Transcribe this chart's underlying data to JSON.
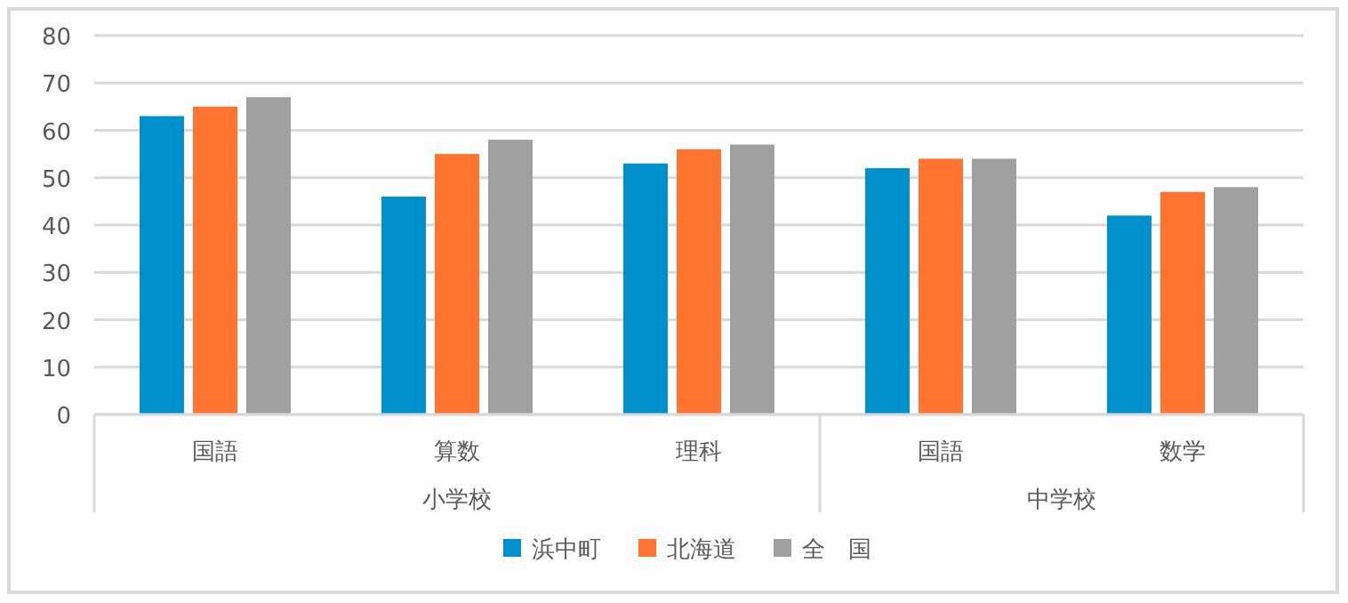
{
  "chart_data": {
    "type": "bar",
    "categories": [
      "国語",
      "算数",
      "理科",
      "国語",
      "数学"
    ],
    "annotations": [
      "小学校",
      "中学校"
    ],
    "series": [
      {
        "name": "浜中町",
        "color": "#0091cd",
        "values": [
          63,
          46,
          53,
          52,
          42
        ]
      },
      {
        "name": "北海道",
        "color": "#fe7430",
        "values": [
          65,
          55,
          56,
          54,
          47
        ]
      },
      {
        "name": "全　国",
        "color": "#a0a0a0",
        "values": [
          67,
          58,
          57,
          54,
          48
        ]
      }
    ],
    "ylim": [
      0,
      80
    ],
    "yticks": [
      0,
      10,
      20,
      30,
      40,
      50,
      60,
      70,
      80
    ],
    "grid": "y",
    "legend": "bottom"
  }
}
